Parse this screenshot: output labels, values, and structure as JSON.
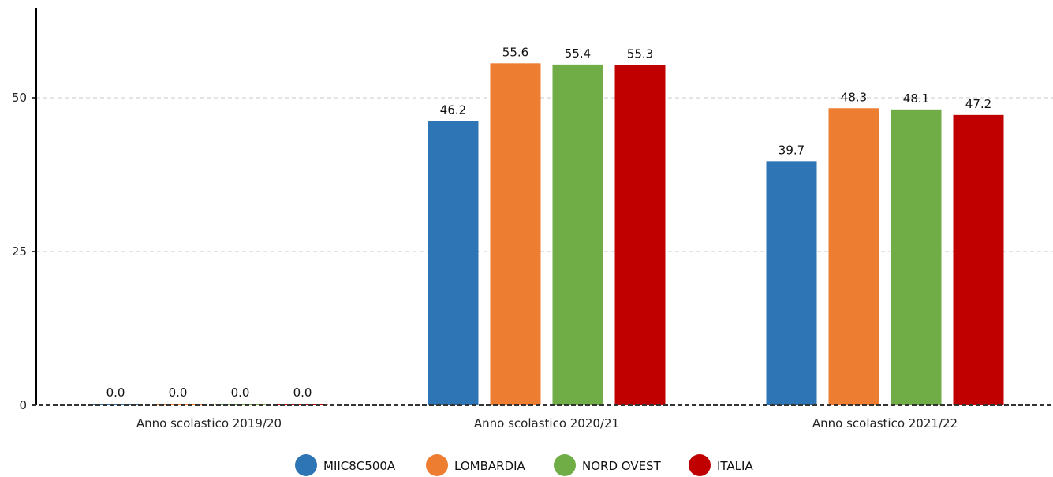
{
  "chart_data": {
    "type": "bar",
    "categories": [
      "Anno scolastico 2019/20",
      "Anno scolastico 2020/21",
      "Anno scolastico 2021/22"
    ],
    "series": [
      {
        "name": "MIIC8C500A",
        "color": "#2e75b6",
        "values": [
          0.0,
          46.2,
          39.7
        ],
        "labels": [
          "0.0",
          "46.2",
          "39.7"
        ]
      },
      {
        "name": "LOMBARDIA",
        "color": "#ed7d31",
        "values": [
          0.0,
          55.6,
          48.3
        ],
        "labels": [
          "0.0",
          "55.6",
          "48.3"
        ]
      },
      {
        "name": "NORD OVEST",
        "color": "#70ad47",
        "values": [
          0.0,
          55.4,
          48.1
        ],
        "labels": [
          "0.0",
          "55.4",
          "48.1"
        ]
      },
      {
        "name": "ITALIA",
        "color": "#c00000",
        "values": [
          0.0,
          55.3,
          47.2
        ],
        "labels": [
          "0.0",
          "55.3",
          "47.2"
        ]
      }
    ],
    "y_ticks": [
      0,
      25,
      50
    ],
    "ylim": [
      0,
      64
    ],
    "grid": true,
    "legend_position": "bottom-center"
  }
}
